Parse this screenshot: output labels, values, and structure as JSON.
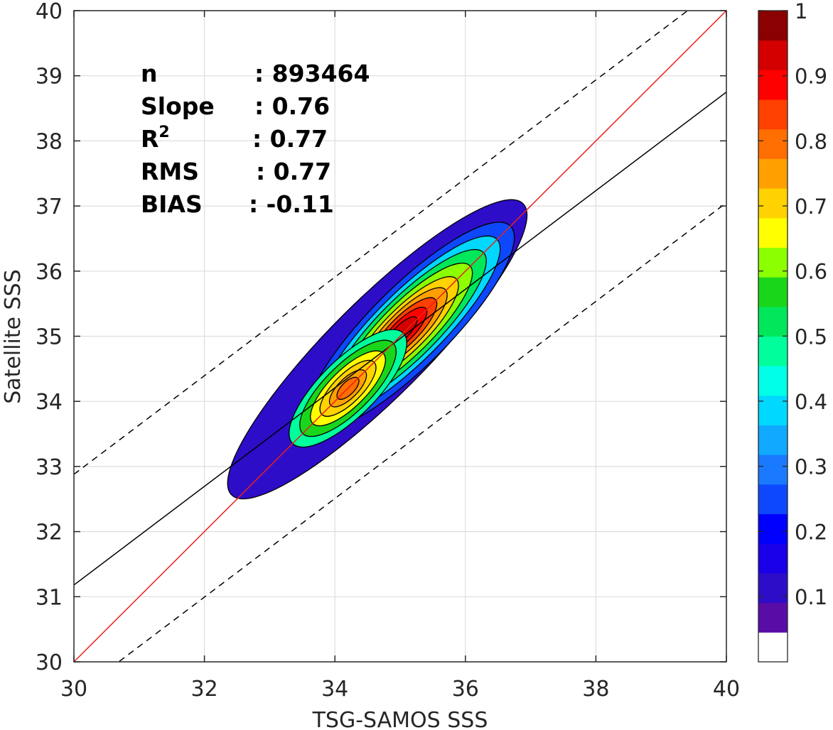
{
  "chart_data": {
    "type": "contour-density",
    "xlabel": "TSG-SAMOS SSS",
    "ylabel": "Satellite SSS",
    "xlim": [
      30,
      40
    ],
    "ylim": [
      30,
      40
    ],
    "xticks": [
      30,
      32,
      34,
      36,
      38,
      40
    ],
    "yticks": [
      30,
      31,
      32,
      33,
      34,
      35,
      36,
      37,
      38,
      39,
      40
    ],
    "grid": true,
    "stats": [
      {
        "label": "n",
        "value": ": 893464"
      },
      {
        "label": "Slope",
        "value": ": 0.76"
      },
      {
        "label": "R",
        "sup": "2",
        "value": ": 0.77"
      },
      {
        "label": "RMS",
        "value": ": 0.77"
      },
      {
        "label": "BIAS",
        "value": ": -0.11"
      }
    ],
    "lines": {
      "one_to_one": {
        "color": "#e8211b",
        "x": [
          30,
          40
        ],
        "y": [
          30,
          40
        ]
      },
      "fit": {
        "color": "#000000",
        "x": [
          30,
          40
        ],
        "y": [
          31.18,
          38.75
        ]
      },
      "upper_bound": {
        "style": "dashed",
        "x": [
          30,
          40
        ],
        "y": [
          32.88,
          40.45
        ]
      },
      "lower_bound": {
        "style": "dashed",
        "x": [
          30,
          40
        ],
        "y": [
          29.48,
          37.05
        ]
      }
    },
    "density_peaks": [
      {
        "x": 35.3,
        "y": 35.3,
        "level": 0.95
      },
      {
        "x": 34.2,
        "y": 34.2,
        "level": 0.73
      }
    ],
    "colorbar": {
      "ticks": [
        "0.1",
        "0.2",
        "0.3",
        "0.4",
        "0.5",
        "0.6",
        "0.7",
        "0.8",
        "0.9",
        "1"
      ],
      "levels": 20,
      "colors": [
        "#ffffff",
        "#5a0da6",
        "#2e0dc8",
        "#1a00e8",
        "#0000ff",
        "#0d48ff",
        "#1a7aff",
        "#11a9ff",
        "#00d8ff",
        "#00ffe8",
        "#00ff9c",
        "#00e85a",
        "#1ad61a",
        "#8cff00",
        "#ffff00",
        "#ffd200",
        "#ffa000",
        "#ff6e00",
        "#ff4000",
        "#ff0000",
        "#d40000",
        "#8b0000"
      ]
    }
  }
}
